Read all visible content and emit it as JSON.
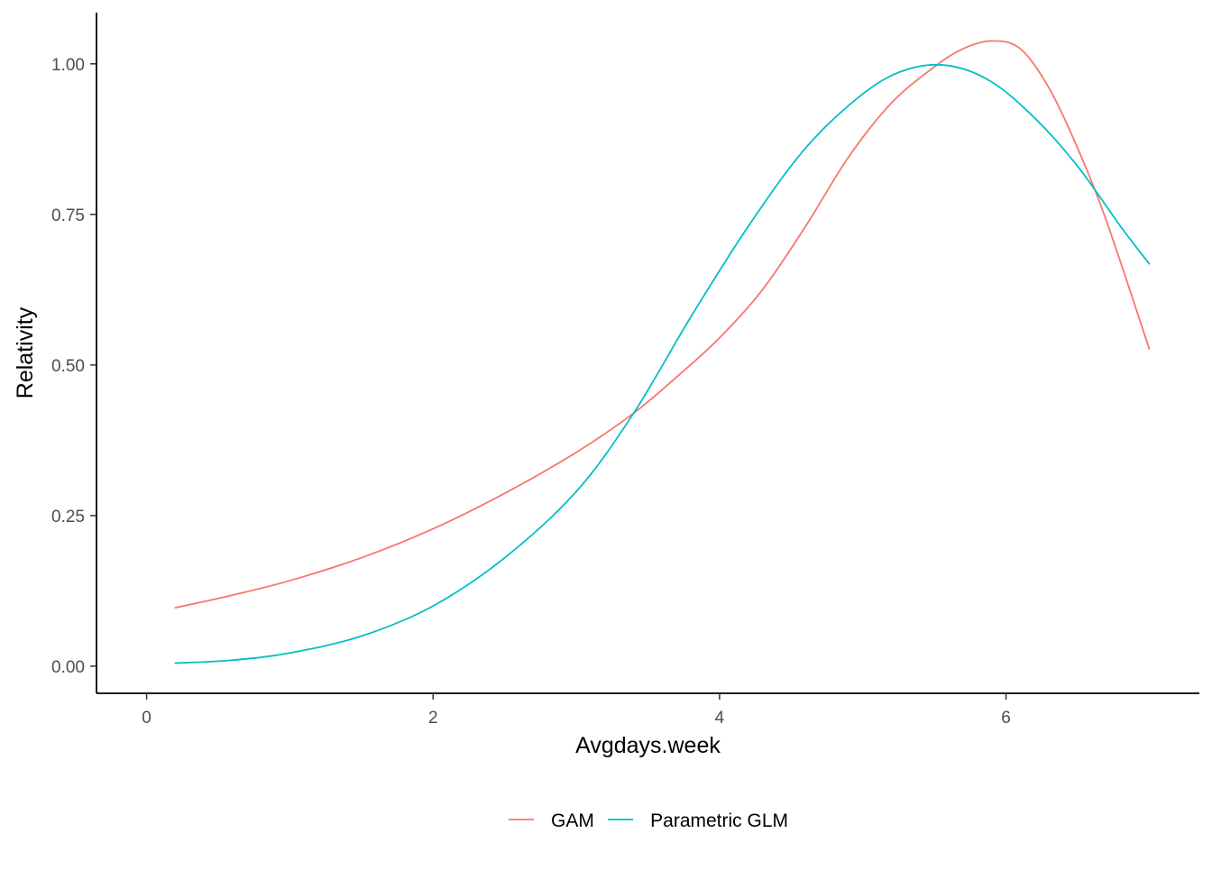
{
  "chart_data": {
    "type": "line",
    "xlabel": "Avgdays.week",
    "ylabel": "Relativity",
    "xlim": [
      -0.35,
      7.35
    ],
    "ylim": [
      -0.045,
      1.085
    ],
    "x_ticks": [
      0,
      2,
      4,
      6
    ],
    "x_tick_labels": [
      "0",
      "2",
      "4",
      "6"
    ],
    "y_ticks": [
      0,
      0.25,
      0.5,
      0.75,
      1.0
    ],
    "y_tick_labels": [
      "0.00",
      "0.25",
      "0.50",
      "0.75",
      "1.00"
    ],
    "grid": false,
    "legend_position": "bottom",
    "series": [
      {
        "name": "GAM",
        "color": "#F8766D",
        "x": [
          0.2,
          0.6,
          1.0,
          1.5,
          2.0,
          2.5,
          3.0,
          3.4,
          3.7,
          4.0,
          4.3,
          4.6,
          4.9,
          5.2,
          5.5,
          5.7,
          5.9,
          6.1,
          6.3,
          6.5,
          6.7,
          7.0
        ],
        "y": [
          0.097,
          0.118,
          0.142,
          0.18,
          0.228,
          0.287,
          0.355,
          0.42,
          0.48,
          0.545,
          0.625,
          0.73,
          0.845,
          0.935,
          0.995,
          1.025,
          1.038,
          1.025,
          0.96,
          0.86,
          0.74,
          0.527
        ]
      },
      {
        "name": "Parametric GLM",
        "color": "#00BFC4",
        "x": [
          0.2,
          0.6,
          1.0,
          1.5,
          2.0,
          2.5,
          3.0,
          3.4,
          3.8,
          4.2,
          4.6,
          5.0,
          5.3,
          5.6,
          5.9,
          6.2,
          6.5,
          6.8,
          7.0
        ],
        "y": [
          0.005,
          0.01,
          0.022,
          0.05,
          0.1,
          0.18,
          0.29,
          0.42,
          0.58,
          0.73,
          0.86,
          0.95,
          0.99,
          0.997,
          0.97,
          0.91,
          0.83,
          0.73,
          0.668
        ]
      }
    ]
  }
}
